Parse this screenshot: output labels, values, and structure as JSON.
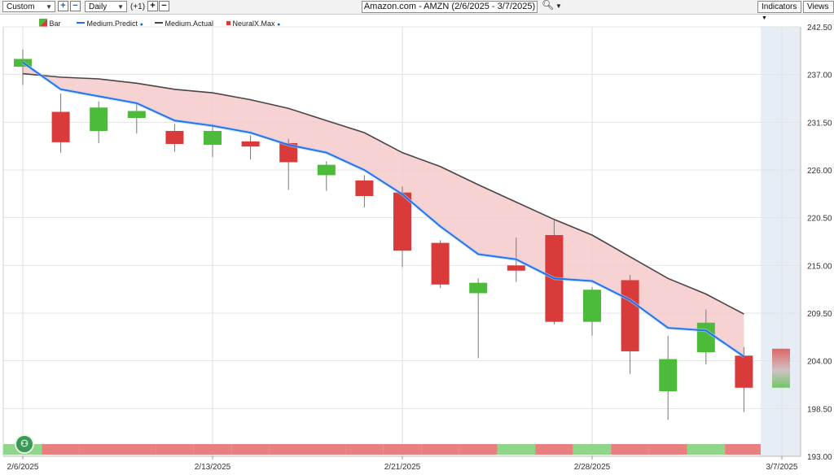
{
  "toolbar": {
    "period_select": "Custom",
    "interval_select": "Daily",
    "offset_label": "(+1)",
    "chart_title": "Amazon.com - AMZN (2/6/2025 - 3/7/2025)",
    "indicators_label": "Indicators",
    "views_label": "Views"
  },
  "legend": {
    "bar": "Bar",
    "medium_predict": "Medium.Predict",
    "medium_actual": "Medium.Actual",
    "neuralx_max": "NeuralX.Max"
  },
  "colors": {
    "up": "#4cbb3a",
    "down": "#d93a3a",
    "predict_line": "#1f6fe8",
    "actual_line": "#4a4444",
    "band_fill": "#f6caca",
    "forecast_area": "#e6edf5",
    "strip_up": "#8fd68a",
    "strip_down": "#e88080"
  },
  "chart_data": {
    "type": "candlestick",
    "title": "Amazon.com - AMZN (2/6/2025 - 3/7/2025)",
    "y_ticks": [
      "242.50",
      "237.00",
      "231.50",
      "226.00",
      "220.50",
      "215.00",
      "209.50",
      "204.00",
      "198.50",
      "193.00"
    ],
    "ylim": [
      193.0,
      242.5
    ],
    "x_ticks": [
      "2/6/2025",
      "2/13/2025",
      "2/21/2025",
      "2/28/2025",
      "3/7/2025"
    ],
    "x_tick_index": [
      0,
      5,
      10,
      15,
      20
    ],
    "candles": [
      {
        "open": 237.9,
        "close": 238.8,
        "high": 239.9,
        "low": 235.8
      },
      {
        "open": 232.7,
        "close": 229.2,
        "high": 234.8,
        "low": 228.0
      },
      {
        "open": 230.5,
        "close": 233.2,
        "high": 233.9,
        "low": 229.1
      },
      {
        "open": 232.0,
        "close": 232.8,
        "high": 233.7,
        "low": 230.2
      },
      {
        "open": 230.5,
        "close": 229.0,
        "high": 231.3,
        "low": 228.1
      },
      {
        "open": 228.9,
        "close": 230.5,
        "high": 231.3,
        "low": 227.5
      },
      {
        "open": 229.3,
        "close": 228.7,
        "high": 230.0,
        "low": 227.2
      },
      {
        "open": 229.1,
        "close": 226.9,
        "high": 229.6,
        "low": 223.7
      },
      {
        "open": 225.4,
        "close": 226.6,
        "high": 227.0,
        "low": 223.6
      },
      {
        "open": 224.8,
        "close": 223.0,
        "high": 225.4,
        "low": 221.7
      },
      {
        "open": 223.4,
        "close": 216.7,
        "high": 224.1,
        "low": 214.8
      },
      {
        "open": 217.6,
        "close": 212.8,
        "high": 217.9,
        "low": 212.4
      },
      {
        "open": 211.8,
        "close": 213.0,
        "high": 213.5,
        "low": 204.3
      },
      {
        "open": 215.0,
        "close": 214.4,
        "high": 218.2,
        "low": 213.1
      },
      {
        "open": 218.5,
        "close": 208.5,
        "high": 220.2,
        "low": 208.2
      },
      {
        "open": 208.5,
        "close": 212.2,
        "high": 212.5,
        "low": 206.9
      },
      {
        "open": 213.3,
        "close": 205.1,
        "high": 213.9,
        "low": 202.5
      },
      {
        "open": 200.5,
        "close": 204.2,
        "high": 206.9,
        "low": 197.2
      },
      {
        "open": 205.0,
        "close": 208.4,
        "high": 209.9,
        "low": 203.6
      },
      {
        "open": 204.6,
        "close": 200.9,
        "high": 205.6,
        "low": 198.1
      }
    ],
    "forecast_candle": {
      "open": 205.4,
      "close": 200.9
    },
    "medium_predict": [
      238.4,
      235.3,
      234.5,
      233.7,
      231.7,
      231.1,
      230.3,
      228.9,
      228.0,
      226.0,
      223.2,
      219.5,
      216.3,
      215.7,
      213.5,
      213.2,
      211.0,
      207.8,
      207.5,
      204.5
    ],
    "medium_actual": [
      237.1,
      236.7,
      236.5,
      236.0,
      235.3,
      234.9,
      234.1,
      233.1,
      231.7,
      230.3,
      228.0,
      226.4,
      224.3,
      222.3,
      220.3,
      218.5,
      216.0,
      213.5,
      211.7,
      209.4
    ],
    "signal_strip": [
      "up",
      "down",
      "down",
      "down",
      "down",
      "down",
      "down",
      "down",
      "down",
      "down",
      "down",
      "down",
      "down",
      "up",
      "down",
      "up",
      "down",
      "down",
      "up",
      "down"
    ],
    "grid": true,
    "legend_position": "top-left"
  }
}
